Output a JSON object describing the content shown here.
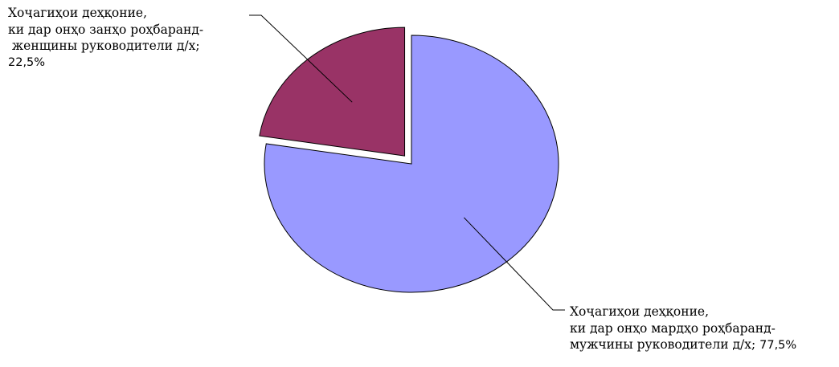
{
  "chart_data": {
    "type": "pie",
    "slices": [
      {
        "label_lines": [
          "Хоҷагиҳои деҳқоние,",
          "ки дар онҳо мардҳо роҳбаранд-",
          "мужчины руководители д/х;"
        ],
        "value_text": "77,5%",
        "value": 77.5,
        "color": "#9999ff",
        "exploded": false
      },
      {
        "label_lines": [
          "Хоҷагиҳои деҳқоние,",
          "ки дар онҳо занҳо роҳбаранд-",
          " женщины руководители д/х;"
        ],
        "value_text": "22,5%",
        "value": 22.5,
        "color": "#993366",
        "exploded": true
      }
    ]
  }
}
